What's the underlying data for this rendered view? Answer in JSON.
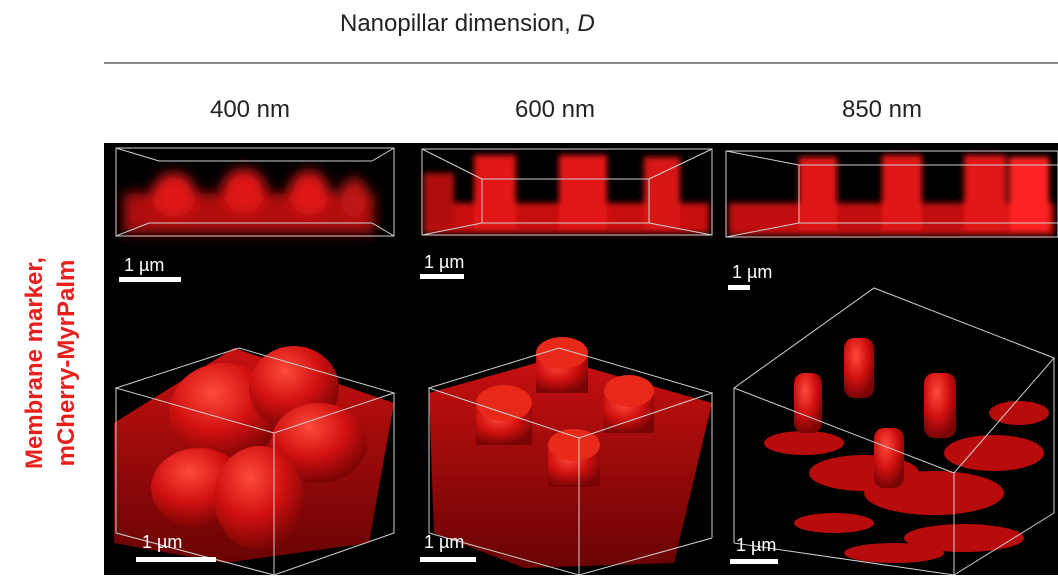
{
  "header": {
    "title_prefix": "Nanopillar dimension, ",
    "title_var": "D"
  },
  "columns": [
    {
      "label": "400 nm"
    },
    {
      "label": "600 nm"
    },
    {
      "label": "850 nm"
    }
  ],
  "row_label": {
    "line1": "Membrane marker,",
    "line2": "mCherry-MyrPalm",
    "color": "#e8201c"
  },
  "scale_bars": {
    "top": [
      "1 µm",
      "1 µm",
      "1 µm"
    ],
    "bottom": [
      "1 µm",
      "1 µm",
      "1 µm"
    ]
  },
  "colors": {
    "signal": "#e01010",
    "background": "#000000",
    "box_lines": "#cfcfcf"
  }
}
